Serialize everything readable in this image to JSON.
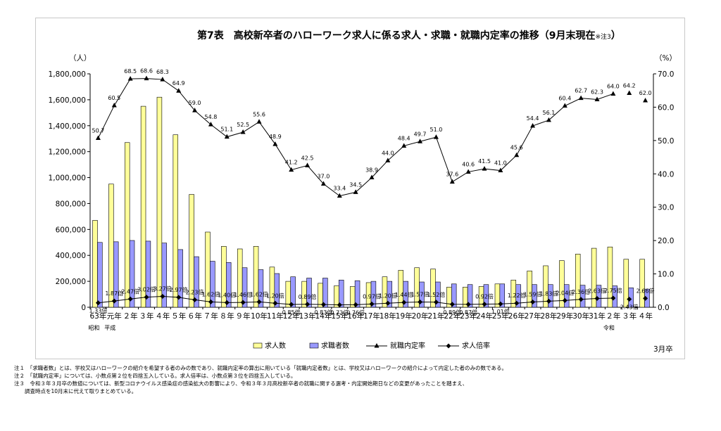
{
  "chart_data": {
    "type": "bar+line",
    "title": "第7表　高校新卒者のハローワーク求人に係る求人・求職・就職内定率の推移（9月末現在",
    "title_note": "※注3",
    "title_close": "）",
    "y_left_unit": "（人）",
    "y_right_unit": "（%）",
    "y_left_ticks": [
      "1,800,000",
      "1,600,000",
      "1,400,000",
      "1,200,000",
      "1,000,000",
      "800,000",
      "600,000",
      "400,000",
      "200,000",
      "0"
    ],
    "y_right_ticks": [
      "70.0",
      "60.0",
      "50.0",
      "40.0",
      "30.0",
      "20.0",
      "10.0",
      "0.0"
    ],
    "ylim_left": [
      0,
      1800000
    ],
    "ylim_right": [
      0,
      70
    ],
    "categories": [
      "63年",
      "元年",
      "２年",
      "３年",
      "４年",
      "５年",
      "６年",
      "７年",
      "８年",
      "９年",
      "10年",
      "11年",
      "12年",
      "13年",
      "14年",
      "15年",
      "16年",
      "17年",
      "18年",
      "19年",
      "20年",
      "21年",
      "22年",
      "23年",
      "24年",
      "25年",
      "26年",
      "27年",
      "28年",
      "29年",
      "30年",
      "31年",
      "２年",
      "３年",
      "４年"
    ],
    "era_labels": [
      {
        "label": "昭和",
        "index": 0
      },
      {
        "label": "平成",
        "index": 1
      },
      {
        "label": "令和",
        "index": 32
      }
    ],
    "x_unit": "3月卒",
    "series": [
      {
        "name": "求人数",
        "type": "bar",
        "axis": "left",
        "color": "#ffff99",
        "values": [
          670000,
          950000,
          1270000,
          1550000,
          1620000,
          1330000,
          870000,
          580000,
          470000,
          450000,
          470000,
          310000,
          200000,
          200000,
          185000,
          165000,
          160000,
          190000,
          235000,
          285000,
          305000,
          295000,
          155000,
          155000,
          160000,
          180000,
          210000,
          280000,
          320000,
          360000,
          410000,
          455000,
          465000,
          370000,
          370000
        ]
      },
      {
        "name": "求職者数",
        "type": "bar",
        "axis": "left",
        "color": "#9999ff",
        "values": [
          500000,
          505000,
          515000,
          510000,
          495000,
          445000,
          390000,
          355000,
          345000,
          305000,
          290000,
          260000,
          235000,
          225000,
          225000,
          210000,
          205000,
          200000,
          200000,
          200000,
          195000,
          195000,
          180000,
          175000,
          175000,
          180000,
          175000,
          175000,
          175000,
          175000,
          170000,
          170000,
          165000,
          150000,
          140000
        ]
      },
      {
        "name": "就職内定率",
        "type": "line",
        "axis": "right",
        "marker": "triangle",
        "values": [
          50.7,
          60.5,
          68.5,
          68.6,
          68.3,
          64.9,
          59.0,
          54.8,
          51.1,
          52.5,
          55.6,
          48.9,
          41.2,
          42.5,
          37.0,
          33.4,
          34.5,
          38.9,
          44.0,
          48.4,
          49.7,
          51.0,
          37.6,
          40.6,
          41.5,
          41.0,
          45.6,
          54.4,
          56.1,
          60.4,
          62.7,
          62.3,
          64.0,
          64.2,
          62.0
        ],
        "labels": [
          "50.7",
          "60.5",
          "68.5",
          "68.6",
          "68.3",
          "64.9",
          "59.0",
          "54.8",
          "51.1",
          "52.5",
          "55.6",
          "48.9",
          "41.2",
          "42.5",
          "37.0",
          "33.4",
          "34.5",
          "38.9",
          "44.0",
          "48.4",
          "49.7",
          "51.0",
          "37.6",
          "40.6",
          "41.5",
          "41.0",
          "45.6",
          "54.4",
          "56.1",
          "60.4",
          "62.7",
          "62.3",
          "64.0",
          "64.2",
          "62.0"
        ]
      },
      {
        "name": "求人倍率",
        "type": "line",
        "axis": "right",
        "marker": "diamond",
        "values": [
          1.33,
          1.87,
          2.47,
          3.02,
          3.27,
          2.97,
          2.23,
          1.62,
          1.4,
          1.46,
          1.62,
          1.2,
          0.85,
          0.89,
          0.83,
          0.72,
          0.76,
          0.97,
          1.2,
          1.44,
          1.57,
          1.52,
          0.89,
          0.87,
          0.92,
          1.01,
          1.22,
          1.59,
          1.83,
          2.04,
          2.36,
          2.63,
          2.75,
          2.43,
          2.66
        ],
        "labels": [
          "1.33倍",
          "1.87倍",
          "2.47倍",
          "3.02倍",
          "3.27倍",
          "2.97倍",
          "2.23倍",
          "1.62倍",
          "1.40倍",
          "1.46倍",
          "1.62倍",
          "1.20倍",
          "0.85倍",
          "0.89倍",
          "0.83倍",
          "0.72倍",
          "0.76倍",
          "0.97倍",
          "1.20倍",
          "1.44倍",
          "1.57倍",
          "1.52倍",
          "0.89倍",
          "0.87倍",
          "0.92倍",
          "1.01倍",
          "1.22倍",
          "1.59倍",
          "1.83倍",
          "2.04倍",
          "2.36倍",
          "2.63倍",
          "2.75倍",
          "2.43倍",
          "2.66倍"
        ]
      }
    ],
    "legend": [
      "求人数",
      "求職者数",
      "就職内定率",
      "求人倍率"
    ],
    "legend_position": "bottom"
  },
  "notes": [
    "注１　「求職者数」とは、学校又はハローワークの紹介を希望する者のみの数であり、就職内定率の算出に用いている「就職内定者数」とは、学校又はハローワークの紹介によって内定した者のみの数である。",
    "注２　「就職内定率」については、小数点第２位を四捨五入している。求人倍率は、小数点第３位を四捨五入している。",
    "注３　令和３年３月卒の数値については、新型コロナウイルス感染症の感染拡大の影響により、令和３年３月高校新卒者の就職に関する選考・内定開始期日などの変更があったことを踏まえ、",
    "　　調査時点を10月末に代えて取りまとめている。"
  ]
}
